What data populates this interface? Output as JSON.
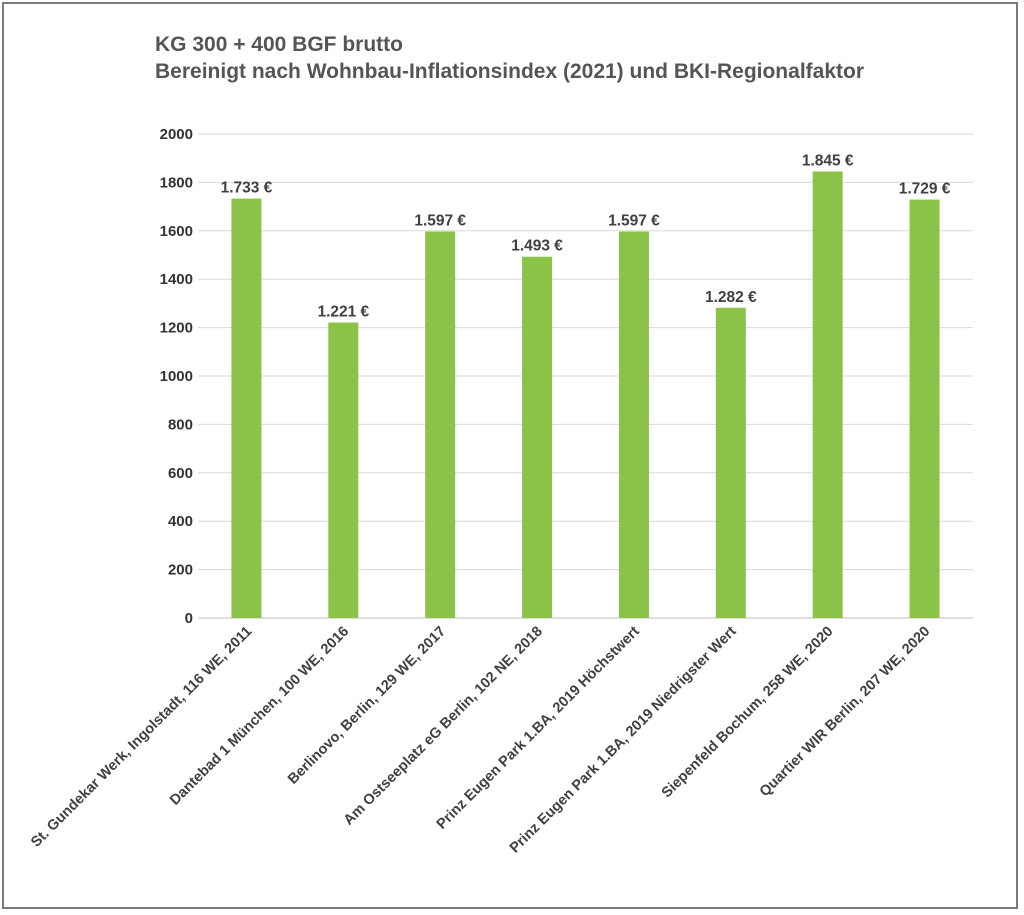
{
  "chart_data": {
    "type": "bar",
    "title": "KG 300 + 400 BGF brutto",
    "subtitle": "Bereinigt nach Wohnbau-Inflationsindex (2021) und BKI-Regionalfaktor",
    "categories": [
      "St. Gundekar Werk, Ingolstadt, 116 WE, 2011",
      "Dantebad 1 München, 100 WE, 2016",
      "Berlinovo, Berlin, 129 WE, 2017",
      "Am Ostseeplatz eG Berlin, 102 NE, 2018",
      "Prinz Eugen Park 1.BA, 2019 Höchstwert",
      "Prinz Eugen Park 1.BA, 2019 Niedrigster Wert",
      "Siepenfeld Bochum, 258 WE, 2020",
      "Quartier WIR Berlin, 207 WE, 2020"
    ],
    "values": [
      1733,
      1221,
      1597,
      1493,
      1597,
      1282,
      1845,
      1729
    ],
    "data_labels": [
      "1.733 €",
      "1.221 €",
      "1.597 €",
      "1.493 €",
      "1.597 €",
      "1.282 €",
      "1.845 €",
      "1.729 €"
    ],
    "y_ticks": [
      "0",
      "200",
      "400",
      "600",
      "800",
      "1000",
      "1200",
      "1400",
      "1600",
      "1800",
      "2000"
    ],
    "ylim": [
      0,
      2000
    ],
    "grid": true,
    "legend": "none",
    "bar_color": "#8bc34a",
    "grid_color": "#d9d9d9"
  }
}
